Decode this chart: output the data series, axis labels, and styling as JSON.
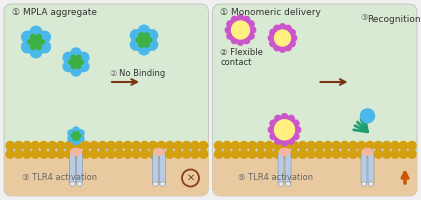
{
  "fig_width": 4.21,
  "fig_height": 2.0,
  "dpi": 100,
  "panel_left_bg": "#d8ead4",
  "panel_right_bg": "#d8ead4",
  "cytoplasm_color": "#e8c9a0",
  "membrane_inner_color": "#c8d8e8",
  "title_left": "① MPLA aggregate",
  "title_right": "① Monomeric delivery",
  "text_no_binding": "No Binding",
  "text_recognition": "Recognition",
  "text_tlr4_left": "③ TLR4 activation",
  "text_tlr4_right": "⑤ TLR4 activation",
  "label2_circ": "②",
  "label3_circ": "③",
  "label2_flex": "② Flexible\ncontact",
  "blue_color": "#4ab8e8",
  "green_color": "#3cb043",
  "purple_color": "#cc55cc",
  "yellow_color": "#fff080",
  "arrow_color": "#7b3510",
  "receptor_color": "#b8cce4",
  "receptor_edge": "#8090a8",
  "bead_color": "#d4a010",
  "x_color": "#8b4010",
  "up_arrow_color": "#cc5500",
  "membrane_zigzag": "#a8b8c8",
  "pink_dome": "#f0b8a0",
  "foot_color": "#e8e8e8",
  "teal_green": "#20a070"
}
